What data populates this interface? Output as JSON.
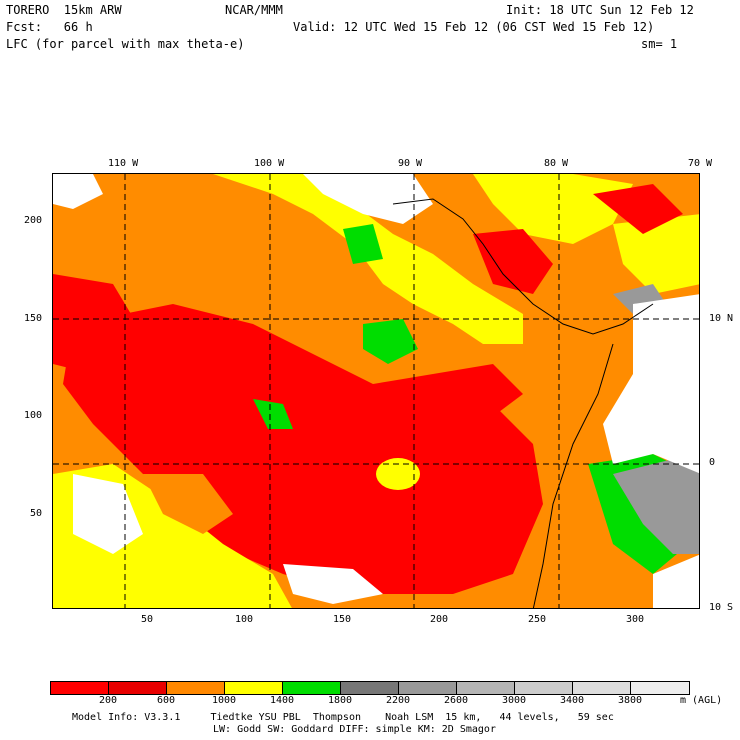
{
  "header": {
    "model": "TORERO  15km ARW",
    "org": "NCAR/MMM",
    "init": "Init: 18 UTC Sun 12 Feb 12",
    "fcst": "Fcst:   66 h",
    "valid": "Valid: 12 UTC Wed 15 Feb 12 (06 CST Wed 15 Feb 12)",
    "field": "LFC (for parcel with max theta-e)",
    "smooth": "sm= 1"
  },
  "map": {
    "lon_labels": [
      "110 W",
      "100 W",
      "90 W",
      "80 W",
      "70 W"
    ],
    "lat_labels": [
      "10 N",
      "0",
      "10 S"
    ],
    "y_ticks": [
      "200",
      "150",
      "100",
      "50"
    ],
    "x_ticks": [
      "50",
      "100",
      "150",
      "200",
      "250",
      "300"
    ],
    "fill_colors": {
      "red": "#ff0000",
      "orange": "#ff8c00",
      "yellow": "#ffff00",
      "green": "#00dd00",
      "gray": "#999999",
      "white": "#ffffff"
    }
  },
  "colorbar": {
    "colors": [
      "#ff0000",
      "#e80000",
      "#ff8800",
      "#ffff00",
      "#00dd00",
      "#777777",
      "#999999",
      "#b5b5b5",
      "#cccccc",
      "#dddddd",
      "#eeeeee"
    ],
    "ticks": [
      "200",
      "600",
      "1000",
      "1400",
      "1800",
      "2200",
      "2600",
      "3000",
      "3400",
      "3800"
    ],
    "unit": "m (AGL)"
  },
  "footer": {
    "line1": "Model Info: V3.3.1     Tiedtke YSU PBL  Thompson    Noah LSM  15 km,   44 levels,   59 sec",
    "line2": "LW: Godd SW: Goddard DIFF: simple KM: 2D Smagor"
  }
}
